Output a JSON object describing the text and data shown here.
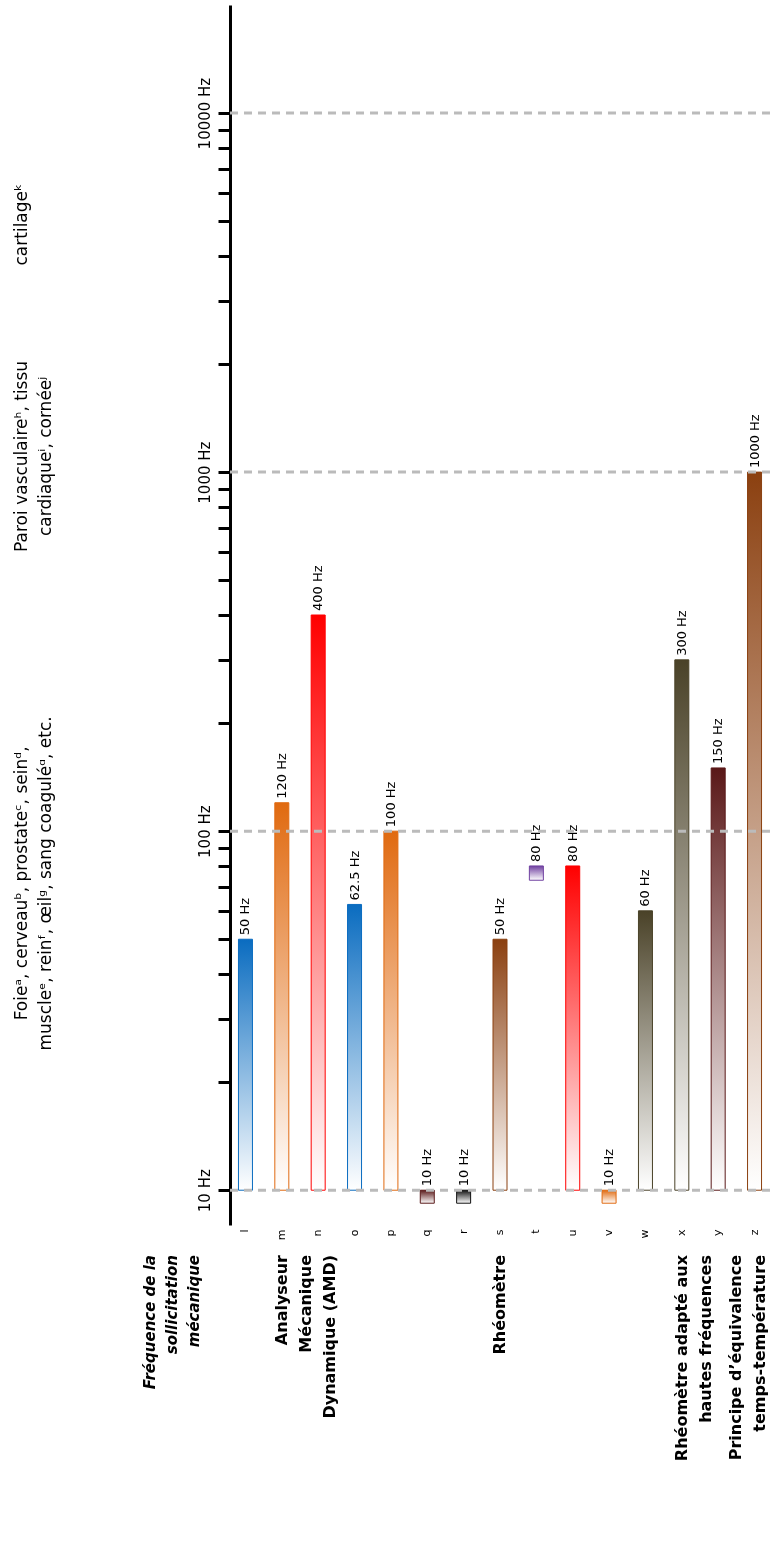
{
  "chart_data": {
    "type": "bar",
    "ylabel": "Fréquence de la\nsollicitation\nmécanique",
    "categories": [
      "l",
      "m",
      "n",
      "o",
      "p",
      "q",
      "r",
      "s",
      "t",
      "u",
      "v",
      "w",
      "x",
      "y",
      "z"
    ],
    "base": [
      10,
      10,
      10,
      10,
      10,
      9.2,
      9.2,
      10,
      73,
      10,
      9.2,
      10,
      10,
      10,
      10
    ],
    "values": [
      40,
      110,
      390,
      52.5,
      90,
      0.8,
      0.8,
      40,
      7,
      70,
      0.8,
      50,
      290,
      140,
      990
    ],
    "value_labels": [
      "50 Hz",
      "120 Hz",
      "400 Hz",
      "62.5 Hz",
      "100 Hz",
      "10 Hz",
      "10 Hz",
      "50 Hz",
      "80 Hz",
      "80 Hz",
      "10 Hz",
      "60 Hz",
      "300 Hz",
      "150 Hz",
      "1000 Hz"
    ],
    "colors": [
      "#0a6cc0",
      "#e06a10",
      "#ff0000",
      "#0a6cc0",
      "#e06a10",
      "#5a1a1a",
      "#111111",
      "#8b4010",
      "#7040a0",
      "#ff0000",
      "#e06a10",
      "#4a4228",
      "#4a4228",
      "#5a1818",
      "#8b4010"
    ],
    "log": true,
    "ylim": [
      8,
      20000
    ],
    "yticks": [
      {
        "value": 10,
        "label": "10 Hz"
      },
      {
        "value": 20,
        "label": null
      },
      {
        "value": 30,
        "label": null
      },
      {
        "value": 40,
        "label": null
      },
      {
        "value": 50,
        "label": null
      },
      {
        "value": 60,
        "label": null
      },
      {
        "value": 70,
        "label": null
      },
      {
        "value": 80,
        "label": null
      },
      {
        "value": 90,
        "label": null
      },
      {
        "value": 100,
        "label": "100 Hz"
      },
      {
        "value": 200,
        "label": null
      },
      {
        "value": 300,
        "label": null
      },
      {
        "value": 400,
        "label": null
      },
      {
        "value": 500,
        "label": null
      },
      {
        "value": 600,
        "label": null
      },
      {
        "value": 700,
        "label": null
      },
      {
        "value": 800,
        "label": null
      },
      {
        "value": 900,
        "label": null
      },
      {
        "value": 1000,
        "label": "1000 Hz"
      },
      {
        "value": 2000,
        "label": null
      },
      {
        "value": 3000,
        "label": null
      },
      {
        "value": 4000,
        "label": null
      },
      {
        "value": 5000,
        "label": null
      },
      {
        "value": 6000,
        "label": null
      },
      {
        "value": 7000,
        "label": null
      },
      {
        "value": 8000,
        "label": null
      },
      {
        "value": 9000,
        "label": null
      },
      {
        "value": 10000,
        "label": "10000 Hz"
      }
    ],
    "ref_lines": [
      {
        "axis": "y",
        "value": 10,
        "color": "#bbbbbb",
        "line_style": "dashed"
      },
      {
        "axis": "y",
        "value": 100,
        "color": "#bbbbbb",
        "line_style": "dashed"
      },
      {
        "axis": "y",
        "value": 1000,
        "color": "#bbbbbb",
        "line_style": "dashed"
      },
      {
        "axis": "y",
        "value": 10000,
        "color": "#bbbbbb",
        "line_style": "dashed"
      }
    ],
    "annotations": [
      "Analyseur\nMécanique\nDynamique (AMD)",
      "Rhéomètre",
      "Rhéomètre adapté aux\nhautes fréquences",
      "Principe d’équivalence\ntemps-température",
      "Foieᵃ, cerveauᵇ, prostateᶜ, seinᵈ,\nmuscleᵉ, reinᶠ, œilᵍ, sang coaguléᵅ, etc.",
      "Paroi vasculaireʰ, tissu\ncardiaqueⁱ, cornéeʲ",
      "cartilageᵏ"
    ]
  }
}
